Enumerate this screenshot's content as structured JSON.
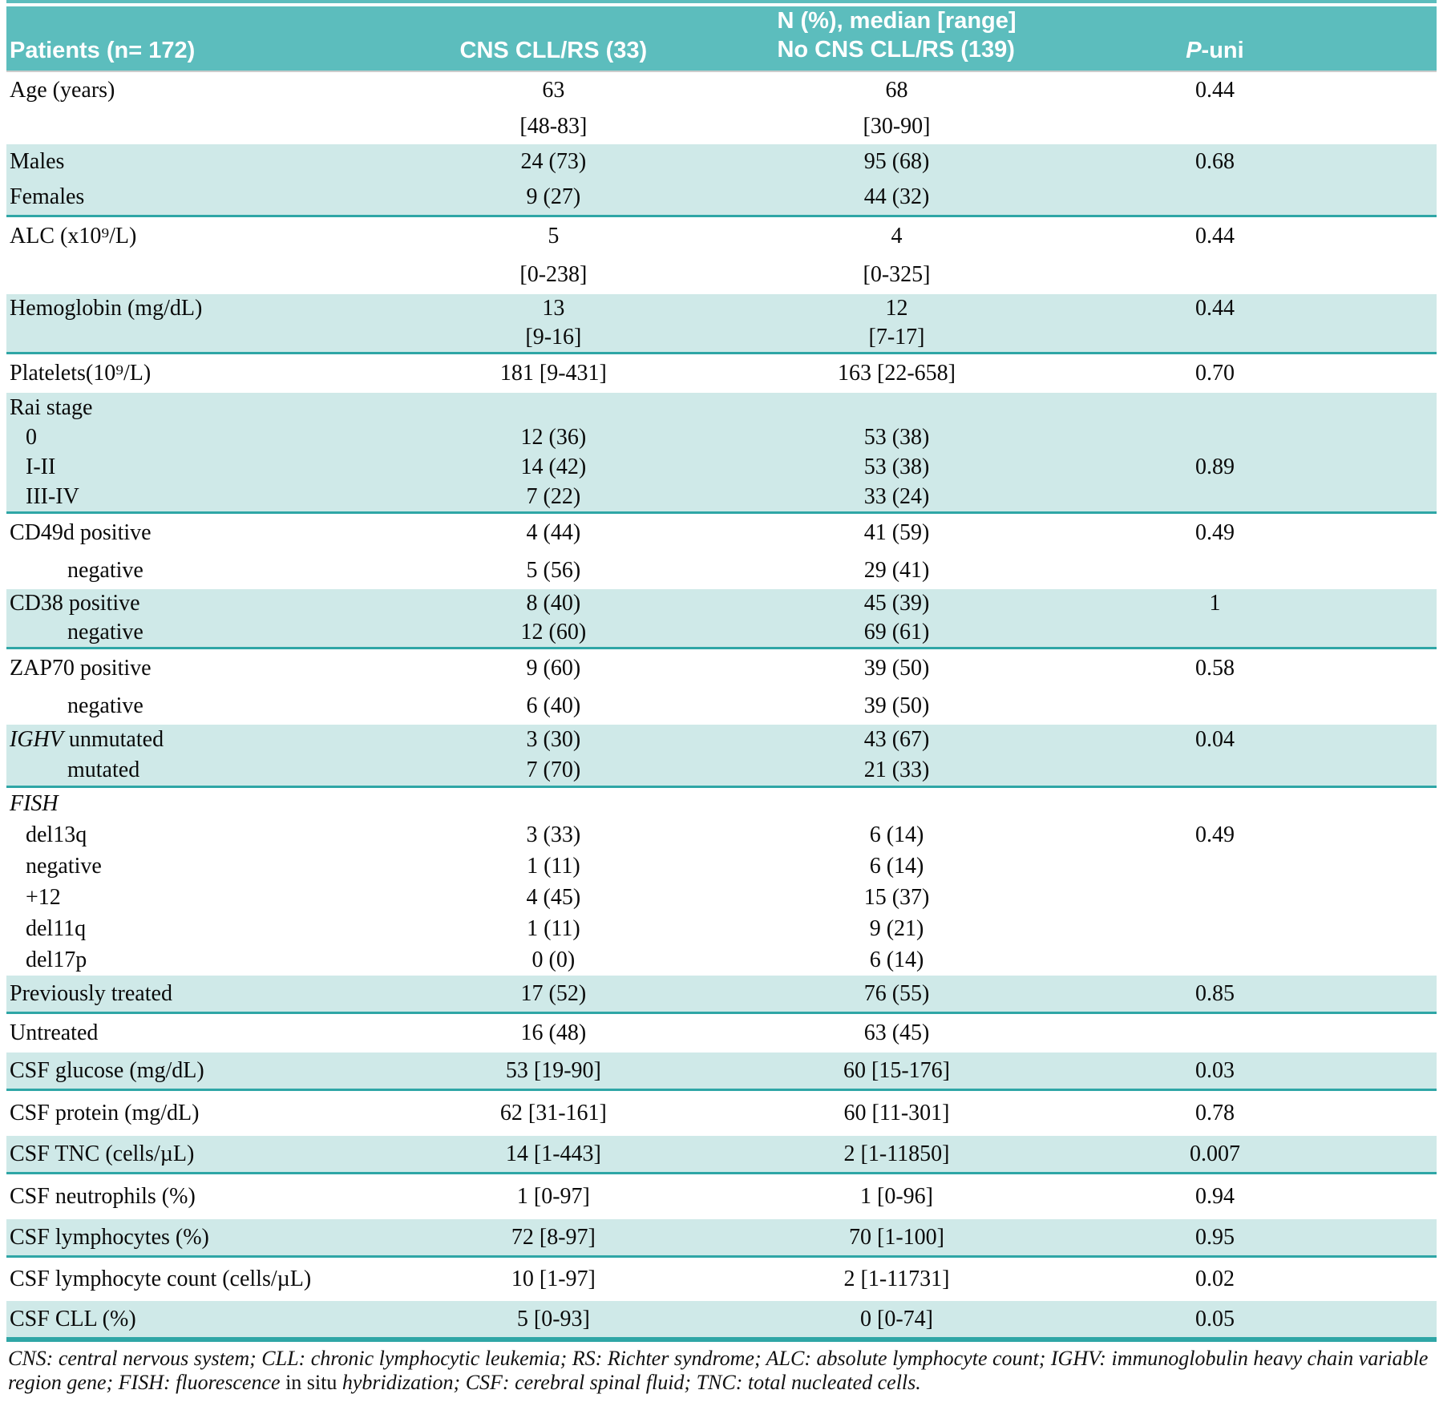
{
  "colors": {
    "header_teal": "#5cbdbd",
    "band_teal": "#cfe9e8",
    "rule_teal": "#2fa6a6",
    "text": "#0a0a0a",
    "header_text": "#ffffff"
  },
  "header": {
    "col1": "Patients (n= 172)",
    "col2": "CNS CLL/RS (33)",
    "col3_line1": "N (%), median [range]",
    "col3_line2": "No CNS CLL/RS (139)",
    "col4_italic": "P",
    "col4_rest": "-uni"
  },
  "rows": [
    {
      "bg": "white",
      "lines": [
        {
          "label": "Age (years)",
          "indent": 0,
          "c1": "63",
          "c2": "68",
          "p": "0.44"
        },
        {
          "label": "",
          "indent": 0,
          "c1": "[48-83]",
          "c2": "[30-90]",
          "p": ""
        }
      ]
    },
    {
      "bg": "teal",
      "lines": [
        {
          "label": "Males",
          "indent": 0,
          "c1": "24 (73)",
          "c2": "95 (68)",
          "p": "0.68"
        },
        {
          "label": "Females",
          "indent": 0,
          "c1": "9 (27)",
          "c2": "44 (32)",
          "p": ""
        }
      ]
    },
    {
      "bg": "white",
      "lines": [
        {
          "label": "ALC (x10⁹/L)",
          "indent": 0,
          "c1": "5",
          "c2": "4",
          "p": "0.44"
        },
        {
          "label": "",
          "indent": 0,
          "c1": "[0-238]",
          "c2": "[0-325]",
          "p": ""
        }
      ]
    },
    {
      "bg": "teal",
      "lines": [
        {
          "label": "Hemoglobin (mg/dL)",
          "indent": 0,
          "c1": "13",
          "c2": "12",
          "p": "0.44"
        },
        {
          "label": "",
          "indent": 0,
          "c1": "[9-16]",
          "c2": "[7-17]",
          "p": ""
        }
      ]
    },
    {
      "bg": "white",
      "lines": [
        {
          "label": "Platelets(10⁹/L)",
          "indent": 0,
          "c1": "181 [9-431]",
          "c2": "163 [22-658]",
          "p": "0.70"
        }
      ]
    },
    {
      "bg": "teal",
      "lines": [
        {
          "label": "Rai stage",
          "indent": 0,
          "c1": "",
          "c2": "",
          "p": ""
        },
        {
          "label": "0",
          "indent": 20,
          "c1": "12 (36)",
          "c2": "53 (38)",
          "p": ""
        },
        {
          "label": "I-II",
          "indent": 20,
          "c1": "14 (42)",
          "c2": "53 (38)",
          "p": "0.89"
        },
        {
          "label": "III-IV",
          "indent": 20,
          "c1": "7 (22)",
          "c2": "33 (24)",
          "p": ""
        }
      ]
    },
    {
      "bg": "white",
      "lines": [
        {
          "label": "CD49d positive",
          "indent": 0,
          "c1": "4 (44)",
          "c2": "41 (59)",
          "p": "0.49"
        },
        {
          "label": "negative",
          "indent": 72,
          "c1": "5 (56)",
          "c2": "29 (41)",
          "p": ""
        }
      ]
    },
    {
      "bg": "teal",
      "lines": [
        {
          "label": "CD38 positive",
          "indent": 0,
          "c1": "8 (40)",
          "c2": "45 (39)",
          "p": "1"
        },
        {
          "label": "negative",
          "indent": 72,
          "c1": "12 (60)",
          "c2": "69 (61)",
          "p": ""
        }
      ]
    },
    {
      "bg": "white",
      "lines": [
        {
          "label": "ZAP70 positive",
          "indent": 0,
          "c1": "9 (60)",
          "c2": "39 (50)",
          "p": "0.58"
        },
        {
          "label": "negative",
          "indent": 72,
          "c1": "6 (40)",
          "c2": "39 (50)",
          "p": ""
        }
      ]
    },
    {
      "bg": "teal",
      "lines": [
        {
          "label_i": "IGHV",
          "label": " unmutated",
          "indent": 0,
          "c1": "3 (30)",
          "c2": "43 (67)",
          "p": "0.04"
        },
        {
          "label": "mutated",
          "indent": 72,
          "c1": "7 (70)",
          "c2": "21 (33)",
          "p": ""
        }
      ]
    },
    {
      "bg": "white",
      "lines": [
        {
          "label_i": "FISH",
          "label": "",
          "indent": 0,
          "c1": "",
          "c2": "",
          "p": ""
        },
        {
          "label": "del13q",
          "indent": 20,
          "c1": "3 (33)",
          "c2": "6 (14)",
          "p": "0.49"
        },
        {
          "label": "negative",
          "indent": 20,
          "c1": "1 (11)",
          "c2": "6 (14)",
          "p": ""
        },
        {
          "label": "+12",
          "indent": 20,
          "c1": "4 (45)",
          "c2": "15 (37)",
          "p": ""
        },
        {
          "label": "del11q",
          "indent": 20,
          "c1": "1 (11)",
          "c2": "9 (21)",
          "p": ""
        },
        {
          "label": "del17p",
          "indent": 20,
          "c1": "0 (0)",
          "c2": "6 (14)",
          "p": ""
        }
      ]
    },
    {
      "bg": "teal",
      "lines": [
        {
          "label": "Previously treated",
          "indent": 0,
          "c1": "17 (52)",
          "c2": "76 (55)",
          "p": "0.85"
        }
      ]
    },
    {
      "bg": "white",
      "lines": [
        {
          "label": "Untreated",
          "indent": 0,
          "c1": "16 (48)",
          "c2": "63 (45)",
          "p": ""
        }
      ]
    },
    {
      "bg": "teal",
      "lines": [
        {
          "label": "CSF glucose (mg/dL)",
          "indent": 0,
          "c1": "53 [19-90]",
          "c2": "60 [15-176]",
          "p": "0.03"
        }
      ]
    },
    {
      "bg": "white",
      "lines": [
        {
          "label": "CSF protein (mg/dL)",
          "indent": 0,
          "c1": "62 [31-161]",
          "c2": "60 [11-301]",
          "p": "0.78"
        }
      ]
    },
    {
      "bg": "teal",
      "lines": [
        {
          "label": "CSF TNC (cells/µL)",
          "indent": 0,
          "c1": "14 [1-443]",
          "c2": "2 [1-11850]",
          "p": "0.007"
        }
      ]
    },
    {
      "bg": "white",
      "lines": [
        {
          "label": "CSF neutrophils (%)",
          "indent": 0,
          "c1": "1 [0-97]",
          "c2": "1 [0-96]",
          "p": "0.94"
        }
      ]
    },
    {
      "bg": "teal",
      "lines": [
        {
          "label": "CSF lymphocytes (%)",
          "indent": 0,
          "c1": "72 [8-97]",
          "c2": "70 [1-100]",
          "p": "0.95"
        }
      ]
    },
    {
      "bg": "white",
      "lines": [
        {
          "label": "CSF lymphocyte count (cells/µL)",
          "indent": 0,
          "c1": "10 [1-97]",
          "c2": "2 [1-11731]",
          "p": "0.02"
        }
      ]
    },
    {
      "bg": "teal",
      "lines": [
        {
          "label": "CSF CLL (%)",
          "indent": 0,
          "c1": "5 [0-93]",
          "c2": "0 [0-74]",
          "p": "0.05"
        }
      ]
    }
  ],
  "footnote": {
    "part1": "CNS: central nervous system; CLL: chronic lymphocytic leukemia; RS: Richter syndrome; ALC: absolute lymphocyte count; IGHV: immunoglobulin heavy chain variable region gene; FISH: fluorescence ",
    "upright": "in situ",
    "part2": " hybridization; CSF: cerebral spinal fluid; TNC: total nucleated cells."
  }
}
